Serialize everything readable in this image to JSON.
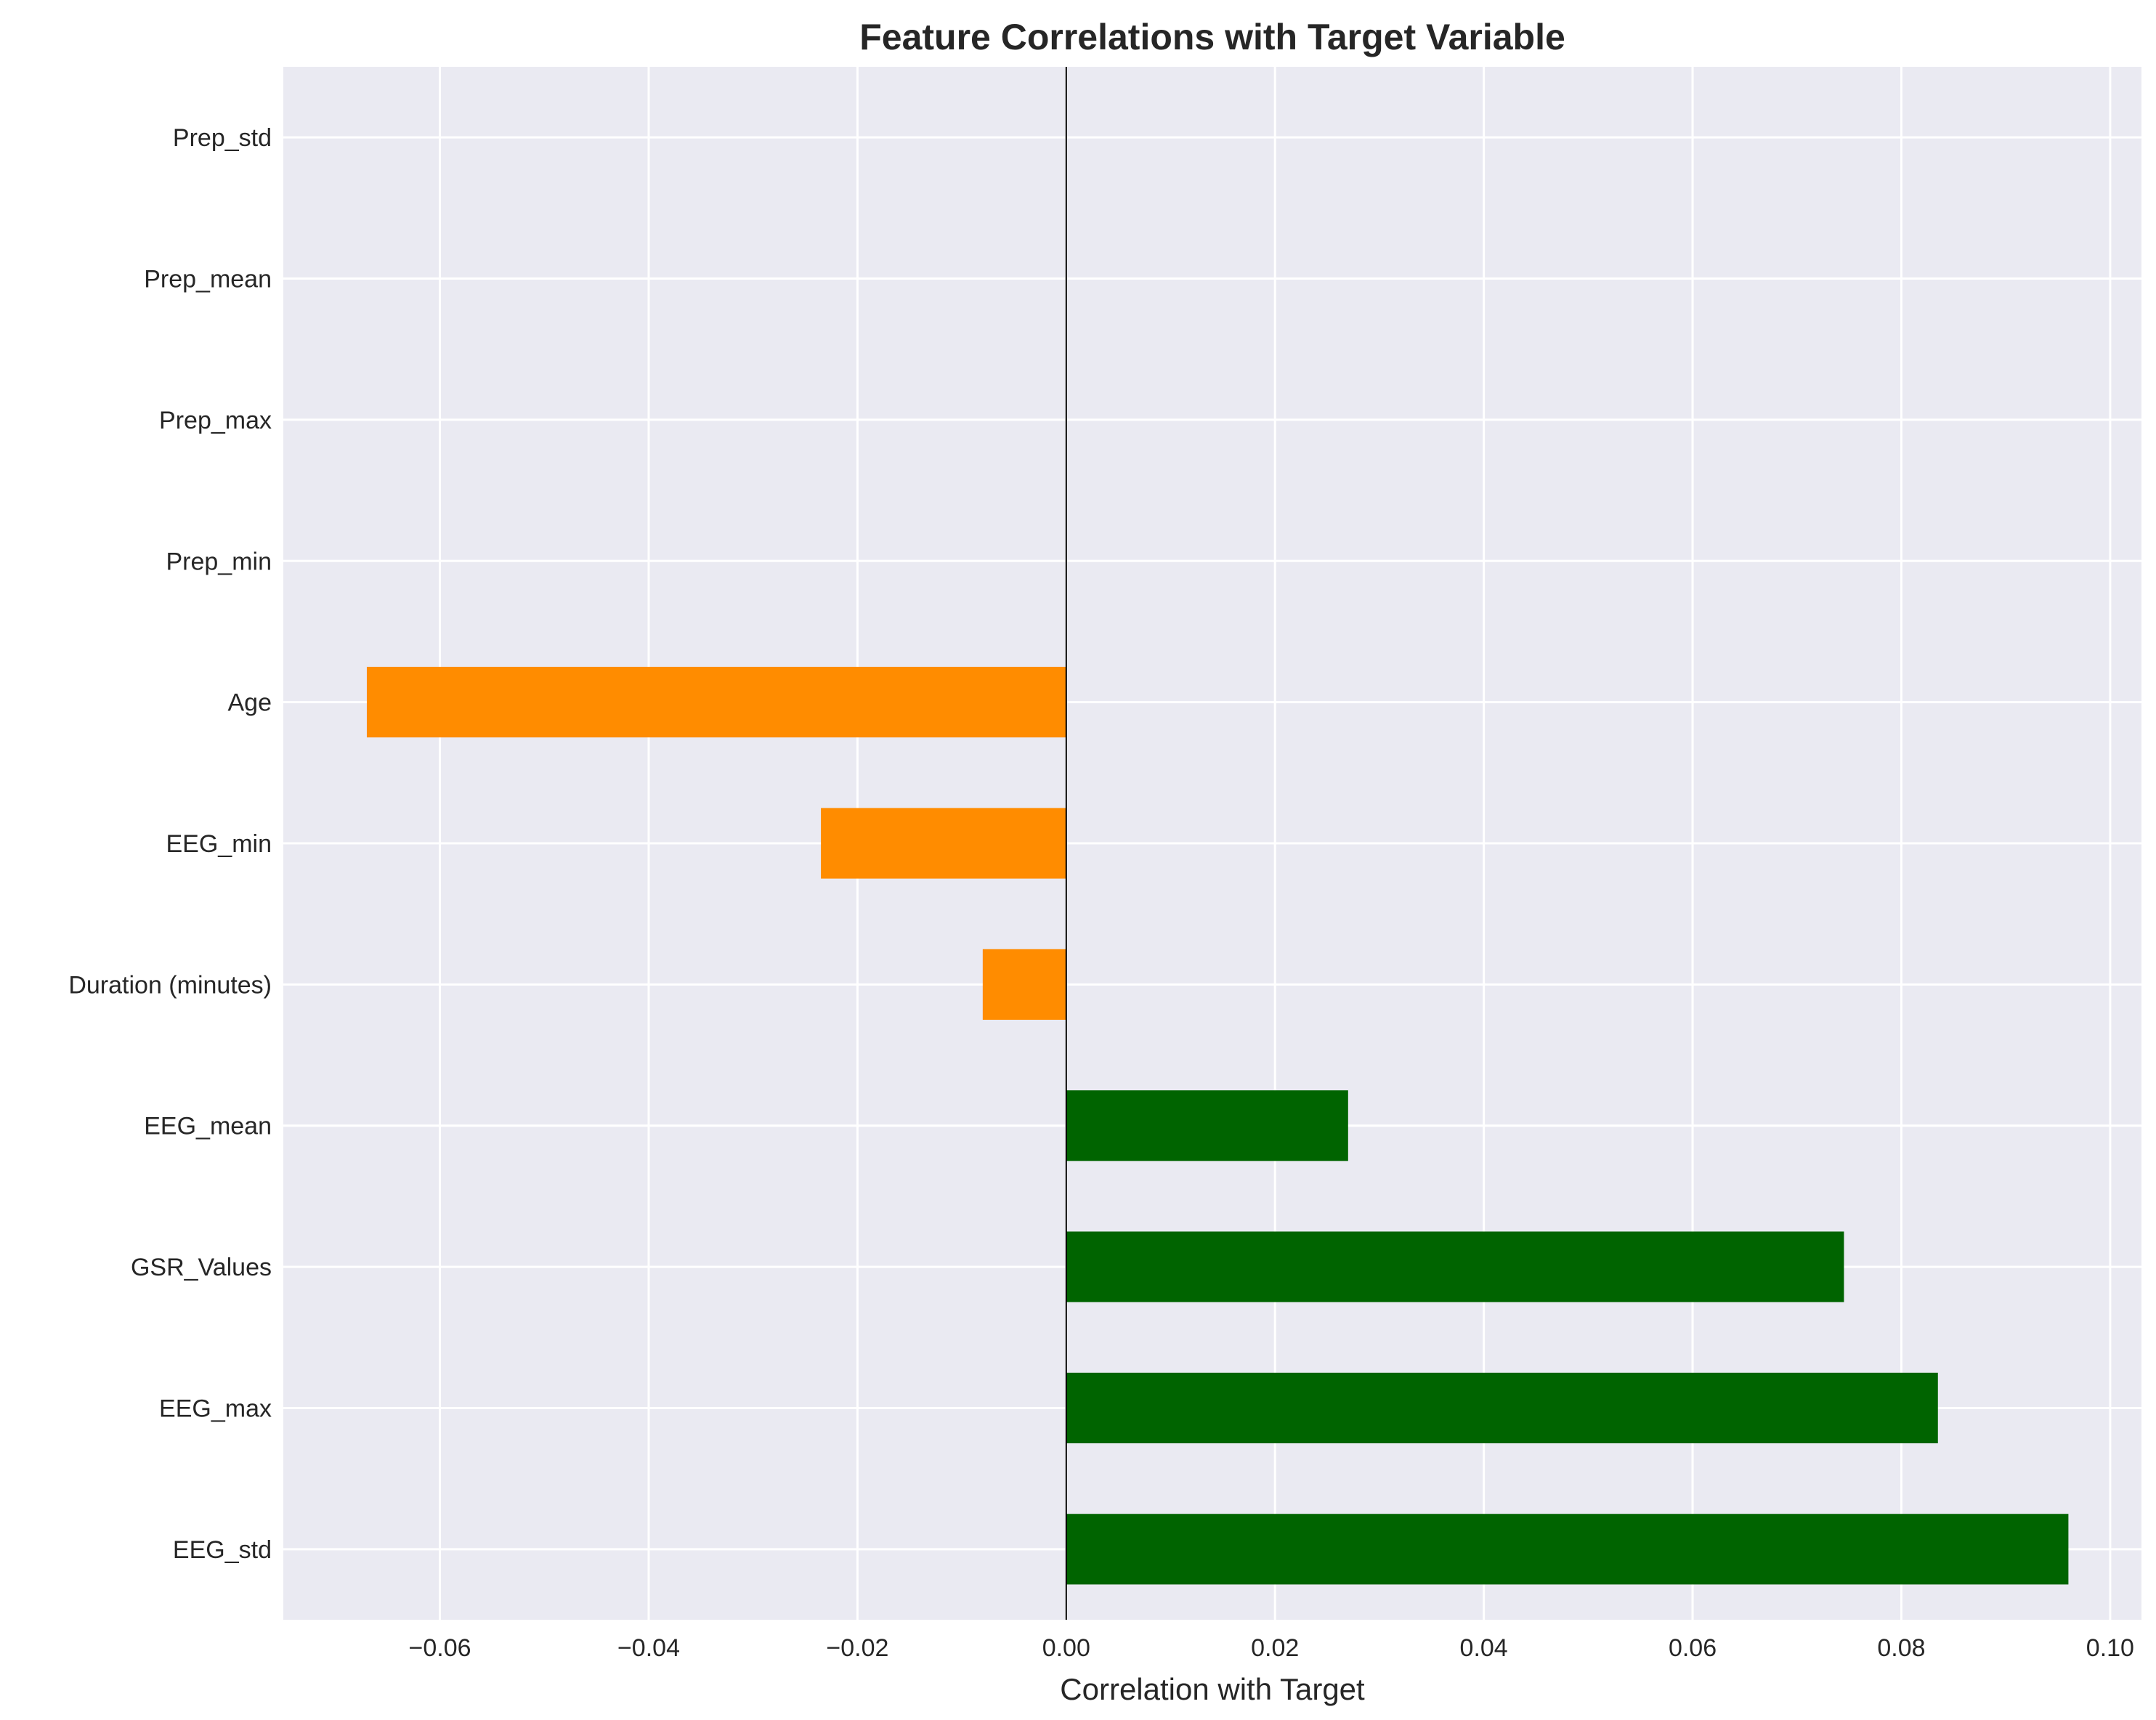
{
  "chart_data": {
    "type": "bar",
    "orientation": "horizontal",
    "title": "Feature Correlations with Target Variable",
    "xlabel": "Correlation with Target",
    "ylabel": "",
    "xlim": [
      -0.075,
      0.103
    ],
    "xticks": [
      -0.06,
      -0.04,
      -0.02,
      0.0,
      0.02,
      0.04,
      0.06,
      0.08,
      0.1
    ],
    "xtick_labels": [
      "−0.06",
      "−0.04",
      "−0.02",
      "0.00",
      "0.02",
      "0.04",
      "0.06",
      "0.08",
      "0.10"
    ],
    "grid": true,
    "legend": "none",
    "colors": {
      "positive": "#006400",
      "negative": "#FF8C00",
      "background": "#EAEAF2",
      "grid": "#FFFFFF",
      "zero_line": "#000000"
    },
    "categories": [
      "EEG_std",
      "EEG_max",
      "GSR_Values",
      "EEG_mean",
      "Duration (minutes)",
      "EEG_min",
      "Age",
      "Prep_min",
      "Prep_max",
      "Prep_mean",
      "Prep_std"
    ],
    "values": [
      0.096,
      0.0835,
      0.0745,
      0.027,
      -0.008,
      -0.0235,
      -0.067,
      0,
      0,
      0,
      0
    ]
  }
}
